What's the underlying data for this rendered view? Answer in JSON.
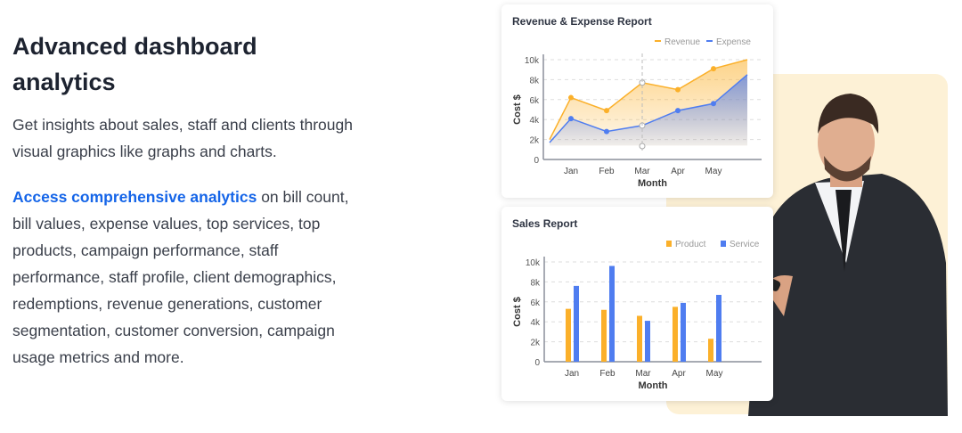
{
  "heading": "Advanced dashboard analytics",
  "intro": "Get insights about sales, staff and clients through visual graphics like graphs and charts.",
  "access_link": "Access comprehensive analytics",
  "access_text": " on bill count, bill values, expense values, top services, top products, campaign performance, staff performance, staff profile, client demographics, redemptions, revenue generations, customer segmentation, customer conversion, campaign usage metrics and more.",
  "colors": {
    "orange": "#fbb02a",
    "blue": "#4f7df0",
    "link": "#1565e8",
    "cream": "#fdf1d6"
  },
  "chart_data": [
    {
      "type": "area",
      "title": "Revenue & Expense Report",
      "xlabel": "Month",
      "ylabel": "Cost $",
      "categories": [
        "",
        "Jan",
        "Feb",
        "Mar",
        "Apr",
        "May",
        ""
      ],
      "yticks": [
        "0",
        "2k",
        "4k",
        "6k",
        "8k",
        "10k"
      ],
      "ylim": [
        0,
        10000
      ],
      "series": [
        {
          "name": "Revenue",
          "values": [
            2000,
            6200,
            4900,
            7700,
            7000,
            9100,
            10000
          ]
        },
        {
          "name": "Expense",
          "values": [
            1700,
            4100,
            2800,
            3400,
            4900,
            5600,
            8500
          ]
        }
      ],
      "legend": "top-right",
      "grid": true
    },
    {
      "type": "bar",
      "title": "Sales Report",
      "xlabel": "Month",
      "ylabel": "Cost $",
      "categories": [
        "Jan",
        "Feb",
        "Mar",
        "Apr",
        "May"
      ],
      "yticks": [
        "0",
        "2k",
        "4k",
        "6k",
        "8k",
        "10k"
      ],
      "ylim": [
        0,
        10000
      ],
      "series": [
        {
          "name": "Product",
          "values": [
            5300,
            5200,
            4600,
            5500,
            2300
          ]
        },
        {
          "name": "Service",
          "values": [
            7600,
            9600,
            4100,
            5900,
            6700
          ]
        }
      ],
      "legend": "top-right",
      "grid": true
    }
  ]
}
